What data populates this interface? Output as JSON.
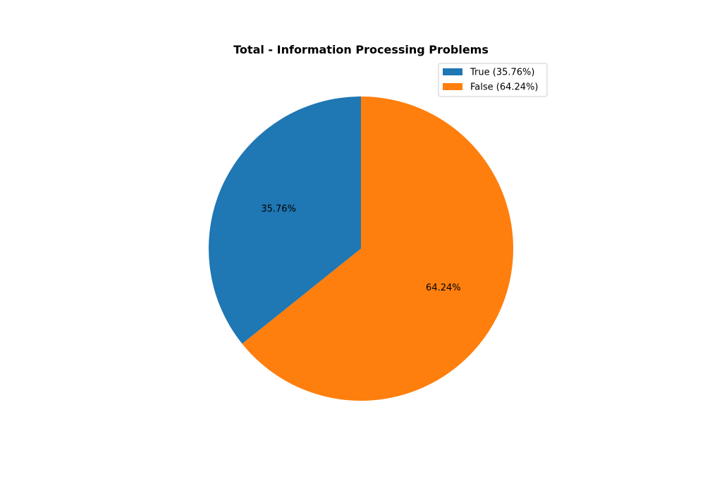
{
  "chart_data": {
    "type": "pie",
    "title": "Total - Information Processing Problems",
    "categories": [
      "True",
      "False"
    ],
    "values": [
      35.76,
      64.24
    ],
    "slice_labels": [
      "35.76%",
      "64.24%"
    ],
    "legend_entries": [
      "True (35.76%)",
      "False (64.24%)"
    ],
    "colors": [
      "#1f77b4",
      "#ff7f0e"
    ],
    "start_angle_deg": 90,
    "direction": "counterclockwise",
    "legend_position": "top-right"
  }
}
